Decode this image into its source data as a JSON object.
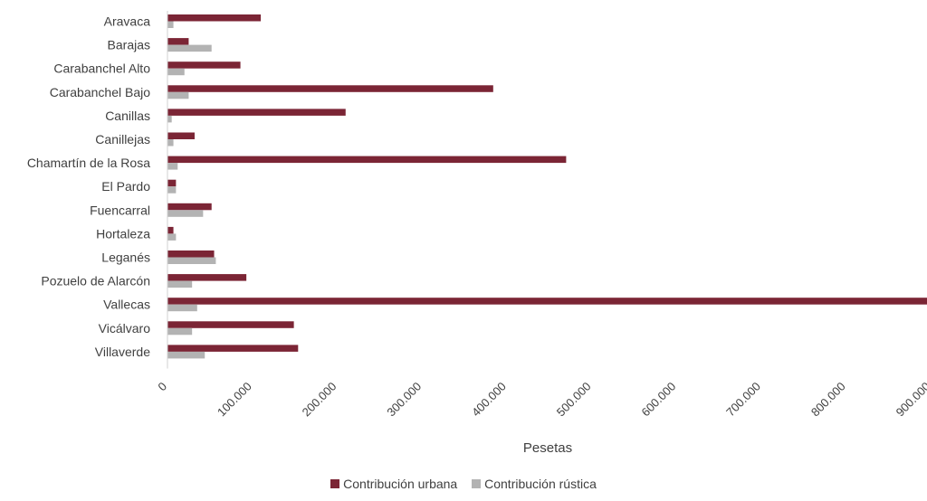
{
  "chart_data": {
    "type": "bar",
    "orientation": "horizontal",
    "categories": [
      "Aravaca",
      "Barajas",
      "Carabanchel Alto",
      "Carabanchel Bajo",
      "Canillas",
      "Canillejas",
      "Chamartín de la Rosa",
      "El Pardo",
      "Fuencarral",
      "Hortaleza",
      "Leganés",
      "Pozuelo de Alarcón",
      "Vallecas",
      "Vicálvaro",
      "Villaverde"
    ],
    "series": [
      {
        "name": "Contribución urbana",
        "color": "#7b2535",
        "values": [
          110000,
          25000,
          86000,
          384000,
          210000,
          32000,
          470000,
          10000,
          52000,
          7000,
          55000,
          93000,
          896000,
          149000,
          154000
        ]
      },
      {
        "name": "Contribución rústica",
        "color": "#b3b3b3",
        "values": [
          7000,
          52000,
          20000,
          25000,
          5000,
          7000,
          12000,
          10000,
          42000,
          10000,
          57000,
          29000,
          35000,
          29000,
          44000
        ]
      }
    ],
    "xlabel": "Pesetas",
    "xlim": [
      0,
      900000
    ],
    "x_ticks": [
      "0",
      "100.000",
      "200.000",
      "300.000",
      "400.000",
      "500.000",
      "600.000",
      "700.000",
      "800.000",
      "900.000"
    ],
    "grid": false,
    "legend_position": "bottom"
  }
}
